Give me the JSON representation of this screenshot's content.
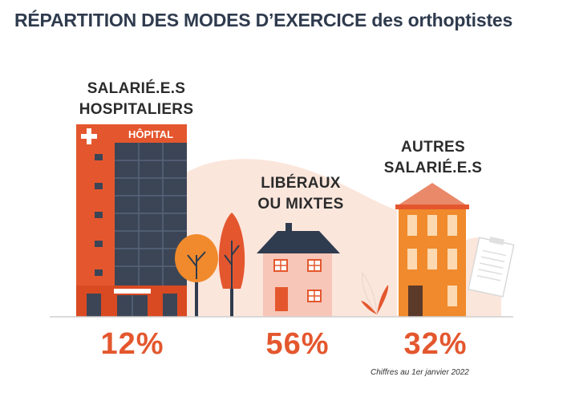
{
  "title": {
    "bold": "RÉPARTITION DES MODES D’EXERCICE",
    "rest": "des orthoptistes"
  },
  "hospital_sign": "HÔPITAL",
  "footnote": "Chiffres au 1er janvier 2022",
  "colors": {
    "accent": "#e4572e",
    "title": "#2f3b4e",
    "hospital": "#e4572e",
    "house_wall": "#f7c6b8",
    "roof": "#2f3b4e",
    "building": "#f08a2c",
    "tree_dark": "#e4572e",
    "tree_light": "#f08a2c",
    "backdrop": "#fbe6dc"
  },
  "chart_data": {
    "type": "pie",
    "title": "RÉPARTITION DES MODES D’EXERCICE des orthoptistes",
    "unit": "%",
    "categories": [
      {
        "id": "hospitaliers",
        "label_lines": [
          "SALARIÉ.E.S",
          "HOSPITALIERS"
        ],
        "value": 12,
        "display": "12%"
      },
      {
        "id": "liberaux",
        "label_lines": [
          "LIBÉRAUX",
          "OU MIXTES"
        ],
        "value": 56,
        "display": "56%"
      },
      {
        "id": "autres",
        "label_lines": [
          "AUTRES",
          "SALARIÉ.E.S"
        ],
        "value": 32,
        "display": "32%"
      }
    ]
  }
}
